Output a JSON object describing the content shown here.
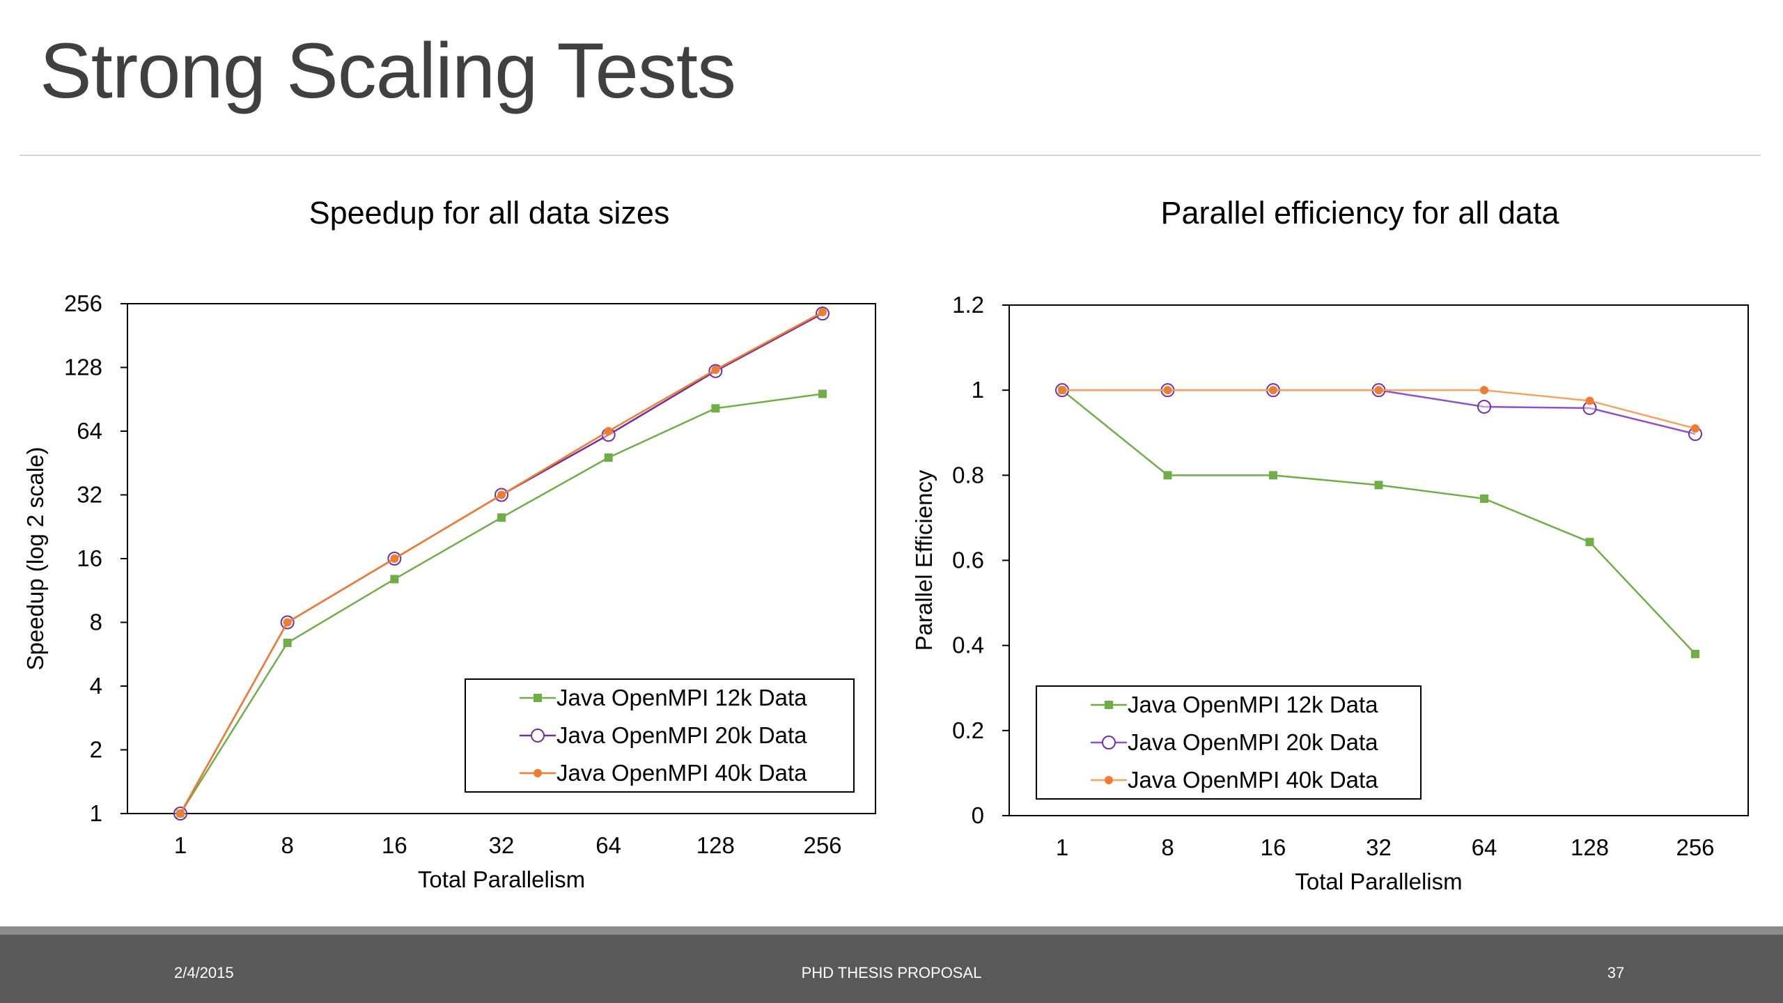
{
  "slide": {
    "title": "Strong Scaling Tests",
    "footer": {
      "date": "2/4/2015",
      "center": "PHD THESIS PROPOSAL",
      "page": "37"
    }
  },
  "colors": {
    "s12k": "#70ad47",
    "s20k": "#7030a0",
    "s40k": "#ed7d31",
    "s20kPe": "#8e52c8",
    "s40kPe": "#f4a261"
  },
  "chart_data": [
    {
      "type": "line",
      "title": "Speedup for all data sizes",
      "xlabel": "Total Parallelism",
      "ylabel": "Speedup (log 2 scale)",
      "yscale": "log2",
      "categories": [
        "1",
        "8",
        "16",
        "32",
        "64",
        "128",
        "256"
      ],
      "x": [
        1,
        8,
        16,
        32,
        64,
        128,
        256
      ],
      "yticks": [
        1,
        2,
        4,
        8,
        16,
        32,
        64,
        128,
        256
      ],
      "ylim": [
        1,
        256
      ],
      "grid": false,
      "legend_position": "bottom-right",
      "series": [
        {
          "name": "Java OpenMPI 12k Data",
          "marker": "square",
          "values": [
            1,
            6.4,
            12.8,
            25,
            48,
            82,
            96
          ]
        },
        {
          "name": "Java OpenMPI 20k Data",
          "marker": "circle-open",
          "values": [
            1,
            8,
            16,
            32,
            61.5,
            123,
            230
          ]
        },
        {
          "name": "Java OpenMPI 40k Data",
          "marker": "dot",
          "values": [
            1,
            8,
            16,
            32,
            64,
            124.8,
            233.5
          ]
        }
      ]
    },
    {
      "type": "line",
      "title": "Parallel efficiency for all data",
      "xlabel": "Total Parallelism",
      "ylabel": "Parallel Efficiency",
      "categories": [
        "1",
        "8",
        "16",
        "32",
        "64",
        "128",
        "256"
      ],
      "x": [
        1,
        8,
        16,
        32,
        64,
        128,
        256
      ],
      "yticks": [
        0,
        0.2,
        0.4,
        0.6,
        0.8,
        1,
        1.2
      ],
      "ytick_labels": [
        "0",
        "0.2",
        "0.4",
        "0.6",
        "0.8",
        "1",
        "1.2"
      ],
      "ylim": [
        0,
        1.2
      ],
      "grid": false,
      "legend_position": "bottom-left",
      "series": [
        {
          "name": "Java OpenMPI 12k Data",
          "marker": "square",
          "values": [
            1,
            0.8,
            0.8,
            0.777,
            0.745,
            0.643,
            0.38
          ]
        },
        {
          "name": "Java OpenMPI 20k Data",
          "marker": "circle-open",
          "values": [
            1,
            1,
            1,
            1,
            0.961,
            0.958,
            0.897
          ]
        },
        {
          "name": "Java OpenMPI 40k Data",
          "marker": "dot",
          "values": [
            1,
            1,
            1,
            1,
            1,
            0.975,
            0.91
          ]
        }
      ]
    }
  ]
}
